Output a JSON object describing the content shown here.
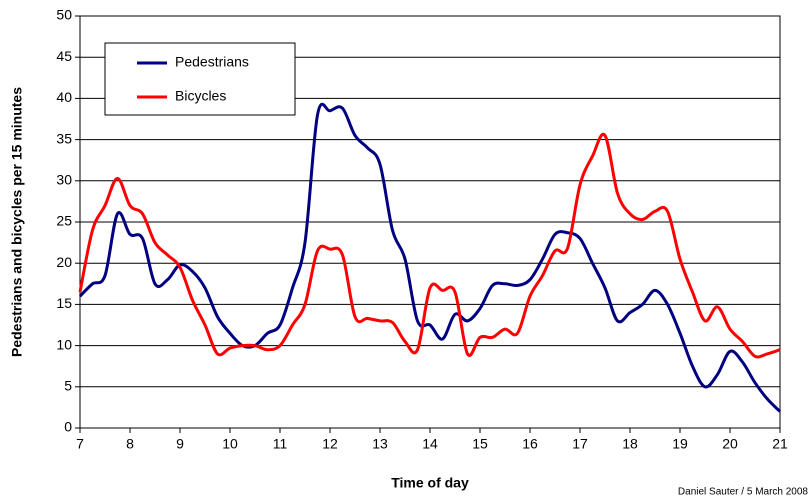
{
  "chart_data": {
    "type": "line",
    "x_label": "Time of day",
    "y_label": "Pedestrians and bicycles per 15 minutes",
    "credit": "Daniel Sauter / 5 March 2008",
    "x": [
      7,
      7.25,
      7.5,
      7.75,
      8,
      8.25,
      8.5,
      8.75,
      9,
      9.25,
      9.5,
      9.75,
      10,
      10.25,
      10.5,
      10.75,
      11,
      11.25,
      11.5,
      11.75,
      12,
      12.25,
      12.5,
      12.75,
      13,
      13.25,
      13.5,
      13.75,
      14,
      14.25,
      14.5,
      14.75,
      15,
      15.25,
      15.5,
      15.75,
      16,
      16.25,
      16.5,
      16.75,
      17,
      17.25,
      17.5,
      17.75,
      18,
      18.25,
      18.5,
      18.75,
      19,
      19.25,
      19.5,
      19.75,
      20,
      20.25,
      20.5,
      20.75,
      21
    ],
    "series": [
      {
        "name": "Pedestrians",
        "color": "#000080",
        "values": [
          16,
          17.5,
          18.5,
          26,
          23.5,
          23,
          17.5,
          18,
          19.8,
          19,
          17,
          13.5,
          11.5,
          10,
          10,
          11.5,
          12.5,
          17,
          22.5,
          38,
          38.5,
          38.8,
          35.5,
          34,
          32,
          24,
          20.5,
          13,
          12.5,
          10.8,
          13.8,
          13,
          14.5,
          17.3,
          17.5,
          17.3,
          18,
          20.5,
          23.5,
          23.7,
          23,
          20,
          17,
          13,
          14,
          15,
          16.7,
          15,
          11.5,
          7.5,
          5,
          6.5,
          9.3,
          8,
          5.5,
          3.5,
          2
        ]
      },
      {
        "name": "Bicycles",
        "color": "#ff0000",
        "values": [
          16.5,
          24,
          27,
          30.3,
          27,
          26,
          22.5,
          21,
          19.5,
          15.5,
          12.5,
          9,
          9.7,
          10,
          10,
          9.5,
          10,
          12.5,
          15,
          21.5,
          21.7,
          21,
          13.5,
          13.3,
          13,
          12.8,
          10.5,
          9.5,
          17,
          16.7,
          16.5,
          9,
          11,
          11,
          12,
          11.5,
          16,
          18.5,
          21.5,
          21.8,
          29.5,
          33,
          35.5,
          28.5,
          26,
          25.3,
          26.3,
          26.3,
          20.5,
          16.5,
          13,
          14.7,
          12,
          10.5,
          8.7,
          9,
          9.5
        ]
      }
    ],
    "xlim": [
      7,
      21
    ],
    "xticks": [
      7,
      8,
      9,
      10,
      11,
      12,
      13,
      14,
      15,
      16,
      17,
      18,
      19,
      20,
      21
    ],
    "ylim": [
      0,
      50
    ],
    "yticks": [
      0,
      5,
      10,
      15,
      20,
      25,
      30,
      35,
      40,
      45,
      50
    ],
    "grid": true,
    "legend": "upper left"
  }
}
